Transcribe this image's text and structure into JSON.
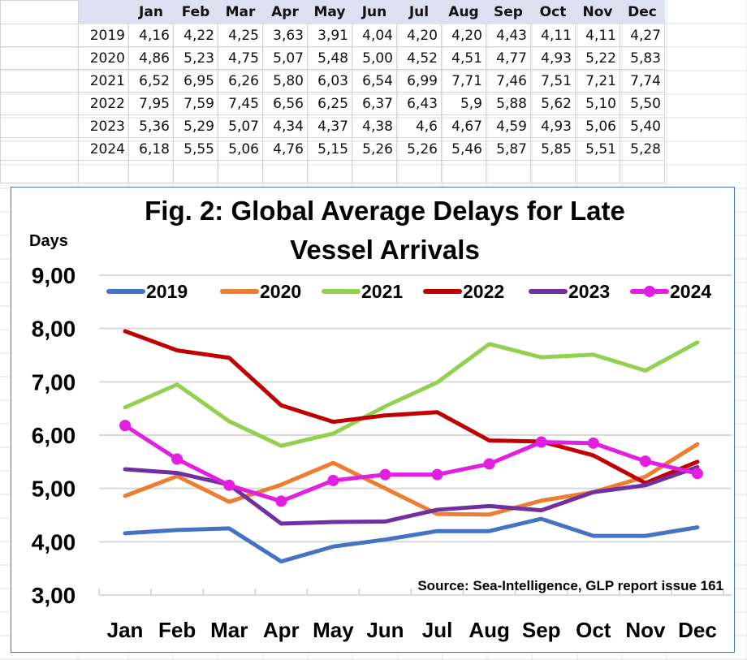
{
  "table": {
    "months": [
      "Jan",
      "Feb",
      "Mar",
      "Apr",
      "May",
      "Jun",
      "Jul",
      "Aug",
      "Sep",
      "Oct",
      "Nov",
      "Dec"
    ],
    "rows": [
      {
        "year": "2019",
        "values": [
          "4,16",
          "4,22",
          "4,25",
          "3,63",
          "3,91",
          "4,04",
          "4,20",
          "4,20",
          "4,43",
          "4,11",
          "4,11",
          "4,27"
        ]
      },
      {
        "year": "2020",
        "values": [
          "4,86",
          "5,23",
          "4,75",
          "5,07",
          "5,48",
          "5,00",
          "4,52",
          "4,51",
          "4,77",
          "4,93",
          "5,22",
          "5,83"
        ]
      },
      {
        "year": "2021",
        "values": [
          "6,52",
          "6,95",
          "6,26",
          "5,80",
          "6,03",
          "6,54",
          "6,99",
          "7,71",
          "7,46",
          "7,51",
          "7,21",
          "7,74"
        ]
      },
      {
        "year": "2022",
        "values": [
          "7,95",
          "7,59",
          "7,45",
          "6,56",
          "6,25",
          "6,37",
          "6,43",
          "5,9",
          "5,88",
          "5,62",
          "5,10",
          "5,50"
        ]
      },
      {
        "year": "2023",
        "values": [
          "5,36",
          "5,29",
          "5,07",
          "4,34",
          "4,37",
          "4,38",
          "4,6",
          "4,67",
          "4,59",
          "4,93",
          "5,06",
          "5,40"
        ]
      },
      {
        "year": "2024",
        "values": [
          "6,18",
          "5,55",
          "5,06",
          "4,76",
          "5,15",
          "5,26",
          "5,26",
          "5,46",
          "5,87",
          "5,85",
          "5,51",
          "5,28"
        ]
      }
    ]
  },
  "chart_data": {
    "type": "line",
    "title": "Fig. 2: Global Average Delays for Late Vessel Arrivals",
    "title_lines": [
      "Fig. 2: Global Average Delays for Late",
      "Vessel Arrivals"
    ],
    "xlabel": "",
    "ylabel": "Days",
    "categories": [
      "Jan",
      "Feb",
      "Mar",
      "Apr",
      "May",
      "Jun",
      "Jul",
      "Aug",
      "Sep",
      "Oct",
      "Nov",
      "Dec"
    ],
    "ylim": [
      3,
      9
    ],
    "yticks": [
      3,
      4,
      5,
      6,
      7,
      8,
      9
    ],
    "ytick_labels": [
      "3,00",
      "4,00",
      "5,00",
      "6,00",
      "7,00",
      "8,00",
      "9,00"
    ],
    "grid": true,
    "legend_position": "top",
    "annotation": "Source: Sea-Intelligence, GLP report issue 161",
    "series": [
      {
        "name": "2019",
        "color": "#4472c4",
        "markers": false,
        "values": [
          4.16,
          4.22,
          4.25,
          3.63,
          3.91,
          4.04,
          4.2,
          4.2,
          4.43,
          4.11,
          4.11,
          4.27
        ]
      },
      {
        "name": "2020",
        "color": "#ed7d31",
        "markers": false,
        "values": [
          4.86,
          5.23,
          4.75,
          5.07,
          5.48,
          5.0,
          4.52,
          4.51,
          4.77,
          4.93,
          5.22,
          5.83
        ]
      },
      {
        "name": "2021",
        "color": "#92d050",
        "markers": false,
        "values": [
          6.52,
          6.95,
          6.26,
          5.8,
          6.03,
          6.54,
          6.99,
          7.71,
          7.46,
          7.51,
          7.21,
          7.74
        ]
      },
      {
        "name": "2022",
        "color": "#c00000",
        "markers": false,
        "values": [
          7.95,
          7.59,
          7.45,
          6.56,
          6.25,
          6.37,
          6.43,
          5.9,
          5.88,
          5.62,
          5.1,
          5.5
        ]
      },
      {
        "name": "2023",
        "color": "#7030a0",
        "markers": false,
        "values": [
          5.36,
          5.29,
          5.07,
          4.34,
          4.37,
          4.38,
          4.6,
          4.67,
          4.59,
          4.93,
          5.06,
          5.4
        ]
      },
      {
        "name": "2024",
        "color": "#e21ee1",
        "markers": true,
        "values": [
          6.18,
          5.55,
          5.06,
          4.76,
          5.15,
          5.26,
          5.26,
          5.46,
          5.87,
          5.85,
          5.51,
          5.28
        ]
      }
    ]
  }
}
